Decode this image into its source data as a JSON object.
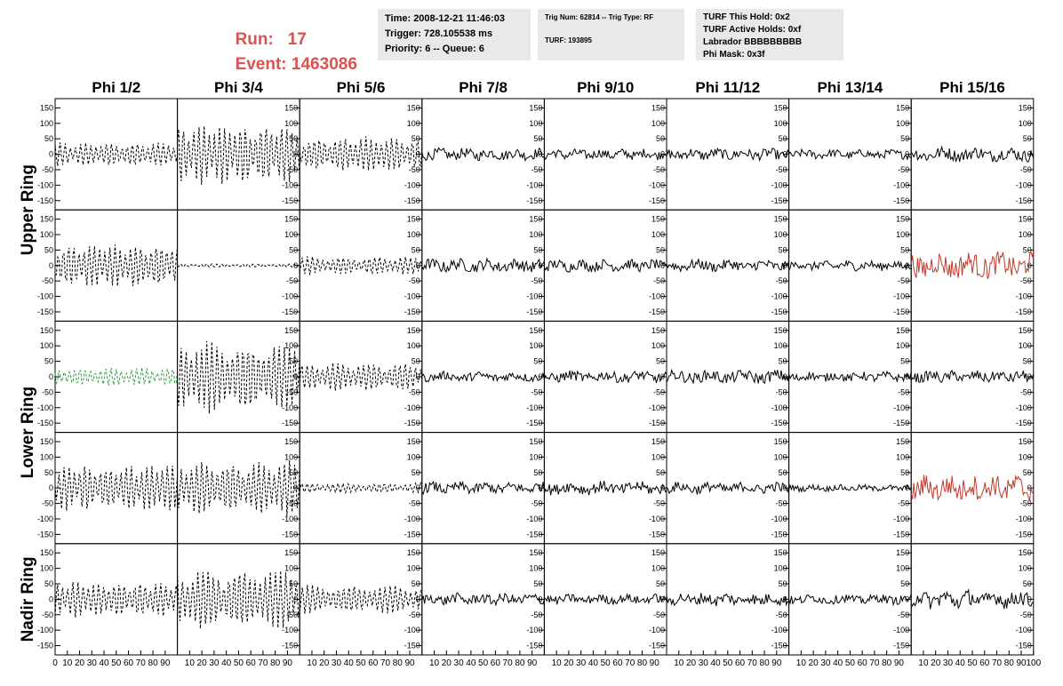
{
  "header": {
    "run_label": "Run:",
    "run_value": "17",
    "event_label": "Event:",
    "event_value": "1463086",
    "info1": [
      "Time: 2008-12-21 11:46:03",
      "Trigger: 728.105538 ms",
      "Priority: 6 -- Queue: 6"
    ],
    "info2_line1": "Trig Num: 62814 -- Trig Type: RF",
    "info2_line2": "TURF: 193895",
    "info3": [
      "TURF This Hold: 0x2",
      "TURF Active Holds: 0xf",
      "Labrador BBBBBBBBB",
      "Phi Mask: 0x3f"
    ],
    "colors": {
      "header_red": "#d9534f",
      "info_bg": "#e9e9e9"
    }
  },
  "chart_data": {
    "type": "line",
    "columns": [
      "Phi 1/2",
      "Phi 3/4",
      "Phi 5/6",
      "Phi 7/8",
      "Phi 9/10",
      "Phi 11/12",
      "Phi 13/14",
      "Phi 15/16"
    ],
    "rows": [
      "Upper Ring",
      "Upper Ring",
      "Lower Ring",
      "Lower Ring",
      "Nadir Ring"
    ],
    "row_labels": [
      {
        "text": "Upper Ring",
        "spans_rows": [
          0,
          1
        ]
      },
      {
        "text": "Lower Ring",
        "spans_rows": [
          2,
          3
        ]
      },
      {
        "text": "Nadir Ring",
        "spans_rows": [
          4
        ]
      }
    ],
    "xlim": [
      0,
      100
    ],
    "ylim": [
      -180,
      180
    ],
    "x_ticks": [
      0,
      10,
      20,
      30,
      40,
      50,
      60,
      70,
      80,
      90,
      100
    ],
    "y_ticks": [
      -150,
      -100,
      -50,
      0,
      50,
      100,
      150
    ],
    "waveform_samples": 96,
    "colors": {
      "default": "#000000",
      "hold_red": "#c0392b",
      "hold_green": "#2e9b3e"
    },
    "panels": [
      [
        {
          "amp": 38,
          "style": "dashed",
          "color": "default"
        },
        {
          "amp": 95,
          "style": "dashed",
          "color": "default"
        },
        {
          "amp": 55,
          "style": "dashed",
          "color": "default"
        },
        {
          "amp": 18,
          "style": "solid",
          "color": "default"
        },
        {
          "amp": 16,
          "style": "solid",
          "color": "default"
        },
        {
          "amp": 18,
          "style": "solid",
          "color": "default"
        },
        {
          "amp": 14,
          "style": "solid",
          "color": "default"
        },
        {
          "amp": 22,
          "style": "solid",
          "color": "default"
        }
      ],
      [
        {
          "amp": 70,
          "style": "dashed",
          "color": "default"
        },
        {
          "amp": 5,
          "style": "dashed",
          "color": "default"
        },
        {
          "amp": 28,
          "style": "dashed",
          "color": "default"
        },
        {
          "amp": 20,
          "style": "solid",
          "color": "default"
        },
        {
          "amp": 18,
          "style": "solid",
          "color": "default"
        },
        {
          "amp": 18,
          "style": "solid",
          "color": "default"
        },
        {
          "amp": 15,
          "style": "solid",
          "color": "default"
        },
        {
          "amp": 40,
          "style": "solid",
          "color": "hold_red"
        }
      ],
      [
        {
          "amp": 28,
          "style": "dashed",
          "color": "hold_green"
        },
        {
          "amp": 110,
          "style": "dashed",
          "color": "default"
        },
        {
          "amp": 45,
          "style": "dashed",
          "color": "default"
        },
        {
          "amp": 15,
          "style": "solid",
          "color": "default"
        },
        {
          "amp": 18,
          "style": "solid",
          "color": "default"
        },
        {
          "amp": 20,
          "style": "solid",
          "color": "default"
        },
        {
          "amp": 15,
          "style": "solid",
          "color": "default"
        },
        {
          "amp": 18,
          "style": "solid",
          "color": "default"
        }
      ],
      [
        {
          "amp": 75,
          "style": "dashed",
          "color": "default"
        },
        {
          "amp": 85,
          "style": "dashed",
          "color": "default"
        },
        {
          "amp": 15,
          "style": "dashed",
          "color": "default"
        },
        {
          "amp": 18,
          "style": "solid",
          "color": "default"
        },
        {
          "amp": 20,
          "style": "solid",
          "color": "default"
        },
        {
          "amp": 18,
          "style": "solid",
          "color": "default"
        },
        {
          "amp": 10,
          "style": "solid",
          "color": "default"
        },
        {
          "amp": 40,
          "style": "solid",
          "color": "hold_red"
        }
      ],
      [
        {
          "amp": 55,
          "style": "dashed",
          "color": "default"
        },
        {
          "amp": 95,
          "style": "dashed",
          "color": "default"
        },
        {
          "amp": 45,
          "style": "dashed",
          "color": "default"
        },
        {
          "amp": 18,
          "style": "solid",
          "color": "default"
        },
        {
          "amp": 15,
          "style": "solid",
          "color": "default"
        },
        {
          "amp": 20,
          "style": "solid",
          "color": "default"
        },
        {
          "amp": 15,
          "style": "solid",
          "color": "default"
        },
        {
          "amp": 28,
          "style": "solid",
          "color": "default"
        }
      ]
    ]
  }
}
